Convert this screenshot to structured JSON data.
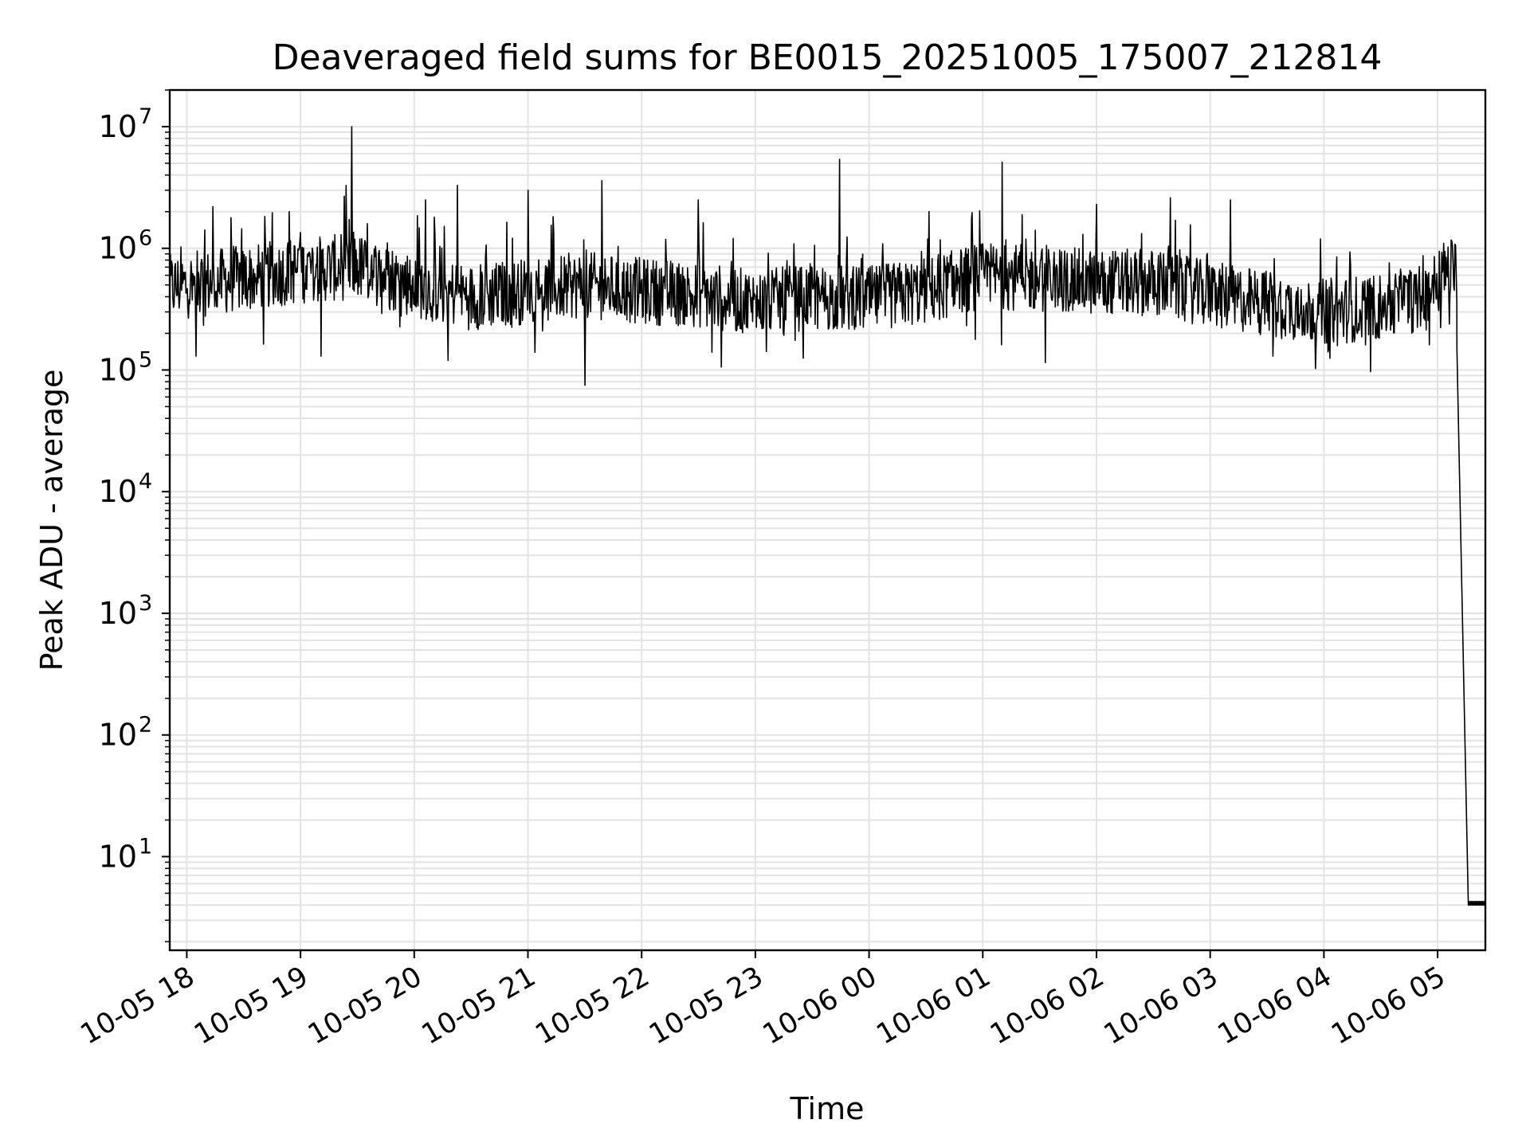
{
  "chart_data": {
    "type": "line",
    "title": "Deaveraged field sums for BE0015_20251005_175007_212814",
    "xlabel": "Time",
    "ylabel": "Peak ADU - average",
    "yscale": "log",
    "ylim": [
      1.7,
      20000000
    ],
    "xlim_hours_after_10_05_18_00": [
      -0.15,
      11.42
    ],
    "grid": true,
    "y_ticks": [
      {
        "base": "10",
        "exp": "1",
        "value": 10
      },
      {
        "base": "10",
        "exp": "2",
        "value": 100
      },
      {
        "base": "10",
        "exp": "3",
        "value": 1000
      },
      {
        "base": "10",
        "exp": "4",
        "value": 10000
      },
      {
        "base": "10",
        "exp": "5",
        "value": 100000
      },
      {
        "base": "10",
        "exp": "6",
        "value": 1000000
      },
      {
        "base": "10",
        "exp": "7",
        "value": 10000000
      }
    ],
    "x_ticks": [
      {
        "label": "10-05 18",
        "hours": 0
      },
      {
        "label": "10-05 19",
        "hours": 1
      },
      {
        "label": "10-05 20",
        "hours": 2
      },
      {
        "label": "10-05 21",
        "hours": 3
      },
      {
        "label": "10-05 22",
        "hours": 4
      },
      {
        "label": "10-05 23",
        "hours": 5
      },
      {
        "label": "10-06 00",
        "hours": 6
      },
      {
        "label": "10-06 01",
        "hours": 7
      },
      {
        "label": "10-06 02",
        "hours": 8
      },
      {
        "label": "10-06 03",
        "hours": 9
      },
      {
        "label": "10-06 04",
        "hours": 10
      },
      {
        "label": "10-06 05",
        "hours": 11
      }
    ],
    "series": [
      {
        "name": "field sums",
        "color": "#000000",
        "baseline_points_hours_log10": [
          [
            -0.15,
            5.68
          ],
          [
            0.5,
            5.75
          ],
          [
            1.0,
            5.82
          ],
          [
            1.5,
            5.85
          ],
          [
            2.0,
            5.7
          ],
          [
            2.5,
            5.6
          ],
          [
            3.0,
            5.65
          ],
          [
            3.5,
            5.7
          ],
          [
            4.0,
            5.65
          ],
          [
            4.5,
            5.62
          ],
          [
            5.0,
            5.55
          ],
          [
            5.5,
            5.6
          ],
          [
            6.0,
            5.58
          ],
          [
            6.5,
            5.65
          ],
          [
            7.0,
            5.78
          ],
          [
            7.5,
            5.75
          ],
          [
            8.0,
            5.72
          ],
          [
            8.5,
            5.72
          ],
          [
            9.0,
            5.62
          ],
          [
            9.5,
            5.55
          ],
          [
            10.0,
            5.48
          ],
          [
            10.5,
            5.52
          ],
          [
            10.9,
            5.6
          ],
          [
            11.0,
            5.78
          ],
          [
            11.12,
            5.82
          ]
        ],
        "spikes_hours_value": [
          [
            0.23,
            2200000
          ],
          [
            0.9,
            2000000
          ],
          [
            1.45,
            10000000
          ],
          [
            2.1,
            2500000
          ],
          [
            2.38,
            3300000
          ],
          [
            3.0,
            3000000
          ],
          [
            3.65,
            3600000
          ],
          [
            4.5,
            2500000
          ],
          [
            5.74,
            5400000
          ],
          [
            7.17,
            5100000
          ],
          [
            8.0,
            2300000
          ],
          [
            8.65,
            2600000
          ],
          [
            9.18,
            2500000
          ]
        ],
        "dips_hours_value": [
          [
            0.08,
            130000
          ],
          [
            1.18,
            130000
          ],
          [
            2.3,
            120000
          ],
          [
            3.5,
            75000
          ],
          [
            4.62,
            140000
          ],
          [
            7.55,
            115000
          ],
          [
            9.55,
            130000
          ],
          [
            10.05,
            125000
          ]
        ],
        "dropoff": {
          "start_hours": 11.17,
          "start_value": 150000,
          "bottom_hours": 11.27,
          "floor_value": 4,
          "end_hours": 11.42
        }
      }
    ]
  }
}
